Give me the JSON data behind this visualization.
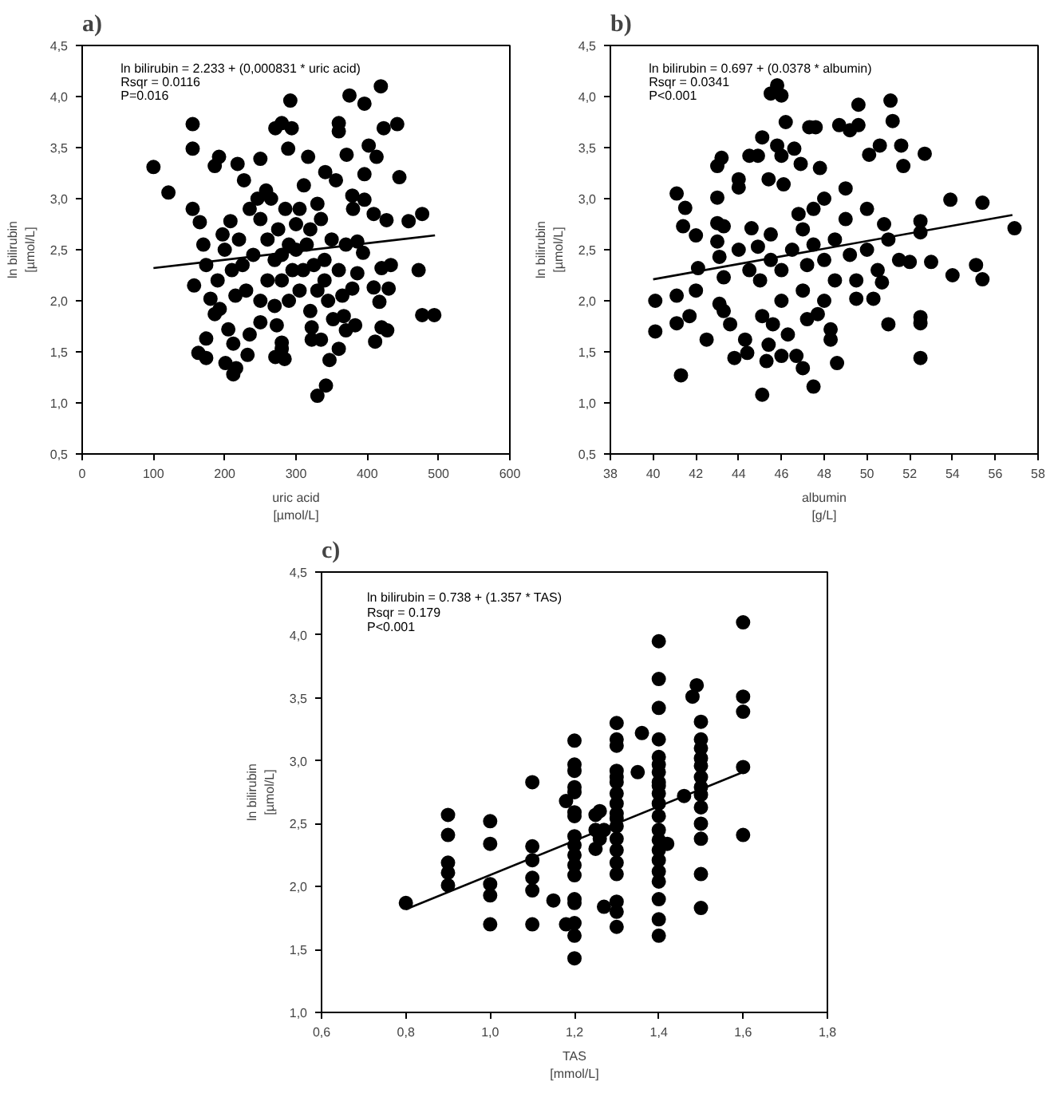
{
  "chart_data": [
    {
      "type": "scatter",
      "title": "a)",
      "xlabel": "uric acid\n[µmol/L]",
      "ylabel": "ln bilirubin\n[µmol/L]",
      "annotations": [
        "ln bilirubin = 2.233 + (0,000831 * uric acid)",
        "Rsqr = 0.0116",
        "P=0.016"
      ],
      "xlim": [
        0,
        600
      ],
      "xticks": [
        0,
        100,
        200,
        300,
        400,
        500,
        600
      ],
      "ylim": [
        0.5,
        4.5
      ],
      "yticks": [
        {
          "value": 0.5,
          "label": "0,5"
        },
        {
          "value": 1.0,
          "label": "1,0"
        },
        {
          "value": 1.5,
          "label": "1,5"
        },
        {
          "value": 2.0,
          "label": "2,0"
        },
        {
          "value": 2.5,
          "label": "2,5"
        },
        {
          "value": 3.0,
          "label": "3,0"
        },
        {
          "value": 3.5,
          "label": "3,5"
        },
        {
          "value": 4.0,
          "label": "4,0"
        },
        {
          "value": 4.5,
          "label": "4,5"
        }
      ],
      "series": [
        {
          "marker": "circle",
          "color": "#000000",
          "x": [
            100,
            121,
            155,
            155,
            155,
            157,
            165,
            163,
            174,
            174,
            201,
            212,
            216,
            212,
            232,
            192,
            186,
            218,
            227,
            250,
            271,
            280,
            294,
            292,
            289,
            317,
            360,
            360,
            375,
            396,
            419,
            423,
            442,
            402,
            413,
            445,
            396,
            396,
            409,
            427,
            458,
            477,
            472,
            477,
            494,
            433,
            420,
            409,
            417,
            430,
            420,
            428,
            411,
            383,
            370,
            367,
            360,
            347,
            342,
            330,
            335,
            322,
            322,
            352,
            280,
            280,
            271,
            284,
            273,
            235,
            250,
            205,
            186,
            193,
            180,
            174,
            170,
            197,
            208,
            246,
            258,
            311,
            341,
            371,
            356,
            379,
            386,
            394,
            386,
            379,
            250,
            260,
            270,
            280,
            290,
            300,
            310,
            320,
            330,
            340,
            350,
            260,
            275,
            285,
            295,
            305,
            315,
            325,
            335,
            345,
            240,
            230,
            220,
            210,
            200,
            190,
            360,
            370,
            380,
            300,
            290,
            280,
            270,
            320,
            250,
            235,
            225,
            215,
            365,
            340,
            305,
            265,
            330
          ],
          "values": [
            3.31,
            3.06,
            3.73,
            3.49,
            2.9,
            2.15,
            2.77,
            1.49,
            1.44,
            1.63,
            1.39,
            1.28,
            1.34,
            1.58,
            1.47,
            3.41,
            3.32,
            3.34,
            3.18,
            3.39,
            3.69,
            3.74,
            3.69,
            3.96,
            3.49,
            3.41,
            3.74,
            3.66,
            4.01,
            3.93,
            4.1,
            3.69,
            3.73,
            3.52,
            3.41,
            3.21,
            3.24,
            2.99,
            2.85,
            2.79,
            2.78,
            2.85,
            2.3,
            1.86,
            1.86,
            2.35,
            2.32,
            2.13,
            1.99,
            2.12,
            1.74,
            1.71,
            1.6,
            1.76,
            1.71,
            1.85,
            1.53,
            1.42,
            1.17,
            1.07,
            1.62,
            1.62,
            1.74,
            1.82,
            1.59,
            1.53,
            1.45,
            1.43,
            1.76,
            1.67,
            1.79,
            1.72,
            1.87,
            1.92,
            2.02,
            2.35,
            2.55,
            2.65,
            2.78,
            3.0,
            3.08,
            3.13,
            3.26,
            3.43,
            3.18,
            3.03,
            2.58,
            2.47,
            2.27,
            2.12,
            2.8,
            2.6,
            2.4,
            2.2,
            2.0,
            2.5,
            2.3,
            2.7,
            2.1,
            2.4,
            2.6,
            2.2,
            2.7,
            2.9,
            2.3,
            2.1,
            2.55,
            2.35,
            2.8,
            2.0,
            2.45,
            2.1,
            2.6,
            2.3,
            2.5,
            2.2,
            2.3,
            2.55,
            2.9,
            2.75,
            2.55,
            2.45,
            1.95,
            1.9,
            2.0,
            2.9,
            2.35,
            2.05,
            2.05,
            2.2,
            2.9,
            3.0,
            2.95
          ]
        },
        {
          "type": "line",
          "color": "#000000",
          "x": [
            100,
            495
          ],
          "values": [
            2.32,
            2.64
          ]
        }
      ]
    },
    {
      "type": "scatter",
      "title": "b)",
      "xlabel": "albumin\n[g/L]",
      "ylabel": "ln bilirubin\n[µmol/L]",
      "annotations": [
        "ln bilirubin = 0.697 + (0.0378 * albumin)",
        "Rsqr = 0.0341",
        "P<0.001"
      ],
      "xlim": [
        38,
        58
      ],
      "xticks": [
        38,
        40,
        42,
        44,
        46,
        48,
        50,
        52,
        54,
        56,
        58
      ],
      "ylim": [
        0.5,
        4.5
      ],
      "yticks": [
        {
          "value": 0.5,
          "label": "0,5"
        },
        {
          "value": 1.0,
          "label": "1,0"
        },
        {
          "value": 1.5,
          "label": "1,5"
        },
        {
          "value": 2.0,
          "label": "2,0"
        },
        {
          "value": 2.5,
          "label": "2,5"
        },
        {
          "value": 3.0,
          "label": "3,0"
        },
        {
          "value": 3.5,
          "label": "3,5"
        },
        {
          "value": 4.0,
          "label": "4,0"
        },
        {
          "value": 4.5,
          "label": "4,5"
        }
      ],
      "series": [
        {
          "marker": "circle",
          "color": "#000000",
          "x": [
            40.1,
            40.1,
            41.1,
            41.1,
            41.3,
            41.1,
            41.5,
            41.4,
            42.0,
            41.7,
            42.0,
            42.1,
            42.5,
            43.0,
            43.0,
            43.2,
            43.0,
            43.3,
            43.0,
            43.1,
            43.3,
            43.1,
            43.3,
            43.6,
            43.8,
            44.3,
            44.4,
            44.0,
            44.0,
            44.5,
            44.9,
            45.1,
            45.5,
            45.8,
            46.0,
            46.2,
            44.6,
            44.9,
            45.1,
            45.3,
            45.4,
            45.1,
            45.4,
            45.8,
            46.0,
            46.6,
            46.9,
            46.1,
            47.3,
            47.6,
            48.7,
            49.6,
            49.6,
            49.2,
            50.1,
            50.6,
            51.1,
            51.2,
            51.6,
            51.7,
            52.7,
            53.9,
            55.4,
            56.9,
            55.1,
            55.4,
            54.0,
            53.0,
            52.0,
            52.5,
            52.5,
            52.5,
            52.5,
            52.5,
            51.0,
            50.7,
            50.3,
            49.5,
            48.3,
            48.6,
            48.3,
            47.5,
            47.0,
            46.7,
            46.0,
            46.3,
            45.6,
            47.2,
            47.7,
            46,
            46.5,
            47,
            47.5,
            48,
            48.5,
            49,
            49.5,
            50,
            50.5,
            47,
            48,
            48,
            47.5,
            46.8,
            45.5,
            45,
            44.5,
            44,
            49,
            50,
            51,
            51.5,
            48.5,
            47.8,
            46,
            45.5,
            47.2,
            49.2,
            50.8
          ],
          "values": [
            2.0,
            1.7,
            2.05,
            1.78,
            1.27,
            3.05,
            2.91,
            2.73,
            2.1,
            1.85,
            2.64,
            2.32,
            1.62,
            3.01,
            3.32,
            3.4,
            2.76,
            2.73,
            2.58,
            2.43,
            2.23,
            1.97,
            1.9,
            1.77,
            1.44,
            1.62,
            1.49,
            3.11,
            3.19,
            3.42,
            3.42,
            3.6,
            4.03,
            4.11,
            4.01,
            3.75,
            2.71,
            2.53,
            1.08,
            1.41,
            1.57,
            1.85,
            3.19,
            3.52,
            3.42,
            3.49,
            3.34,
            3.14,
            3.7,
            3.7,
            3.72,
            3.92,
            3.72,
            3.67,
            3.43,
            3.52,
            3.96,
            3.76,
            3.52,
            3.32,
            3.44,
            2.99,
            2.96,
            2.71,
            2.35,
            2.21,
            2.25,
            2.38,
            2.38,
            2.78,
            2.67,
            1.84,
            1.78,
            1.44,
            1.77,
            2.18,
            2.02,
            2.02,
            1.62,
            1.39,
            1.72,
            1.16,
            1.34,
            1.46,
            1.46,
            1.67,
            1.77,
            1.82,
            1.87,
            2.3,
            2.5,
            2.7,
            2.9,
            2.4,
            2.6,
            2.8,
            2.2,
            2.5,
            2.3,
            2.1,
            3.0,
            2.0,
            2.55,
            2.85,
            2.4,
            2.2,
            2.3,
            2.5,
            3.1,
            2.9,
            2.6,
            2.4,
            2.2,
            3.3,
            2.0,
            2.65,
            2.35,
            2.45,
            2.75
          ]
        },
        {
          "type": "line",
          "color": "#000000",
          "x": [
            40,
            56.8
          ],
          "values": [
            2.21,
            2.84
          ]
        }
      ]
    },
    {
      "type": "scatter",
      "title": "c)",
      "xlabel": "TAS\n[mmol/L]",
      "ylabel": "ln bilirubin\n[µmol/L]",
      "annotations": [
        "ln bilirubin = 0.738 + (1.357 * TAS)",
        "Rsqr = 0.179",
        "P<0.001"
      ],
      "xlim": [
        0.6,
        1.8
      ],
      "xticks": [
        {
          "value": 0.6,
          "label": "0,6"
        },
        {
          "value": 0.8,
          "label": "0,8"
        },
        {
          "value": 1.0,
          "label": "1,0"
        },
        {
          "value": 1.2,
          "label": "1,2"
        },
        {
          "value": 1.4,
          "label": "1,4"
        },
        {
          "value": 1.6,
          "label": "1,6"
        },
        {
          "value": 1.8,
          "label": "1,8"
        }
      ],
      "ylim": [
        1.0,
        4.5
      ],
      "yticks": [
        {
          "value": 1.0,
          "label": "1,0"
        },
        {
          "value": 1.5,
          "label": "1,5"
        },
        {
          "value": 2.0,
          "label": "2,0"
        },
        {
          "value": 2.5,
          "label": "2,5"
        },
        {
          "value": 3.0,
          "label": "3,0"
        },
        {
          "value": 3.5,
          "label": "3,5"
        },
        {
          "value": 4.0,
          "label": "4,0"
        },
        {
          "value": 4.5,
          "label": "4,5"
        }
      ],
      "series": [
        {
          "marker": "circle",
          "color": "#000000",
          "x": [
            0.8,
            0.9,
            0.9,
            0.9,
            0.9,
            0.9,
            1.0,
            1.0,
            1.0,
            1.0,
            1.0,
            1.1,
            1.1,
            1.1,
            1.1,
            1.1,
            1.1,
            1.15,
            1.18,
            1.18,
            1.2,
            1.2,
            1.2,
            1.2,
            1.2,
            1.2,
            1.2,
            1.2,
            1.2,
            1.2,
            1.2,
            1.2,
            1.2,
            1.2,
            1.2,
            1.2,
            1.2,
            1.25,
            1.25,
            1.25,
            1.26,
            1.26,
            1.27,
            1.27,
            1.3,
            1.3,
            1.3,
            1.3,
            1.3,
            1.3,
            1.3,
            1.3,
            1.3,
            1.3,
            1.3,
            1.3,
            1.3,
            1.3,
            1.3,
            1.3,
            1.3,
            1.3,
            1.35,
            1.36,
            1.4,
            1.4,
            1.4,
            1.4,
            1.4,
            1.4,
            1.4,
            1.4,
            1.4,
            1.4,
            1.4,
            1.4,
            1.4,
            1.4,
            1.4,
            1.4,
            1.4,
            1.4,
            1.4,
            1.4,
            1.4,
            1.42,
            1.46,
            1.48,
            1.49,
            1.5,
            1.5,
            1.5,
            1.5,
            1.5,
            1.5,
            1.5,
            1.5,
            1.5,
            1.5,
            1.5,
            1.5,
            1.5,
            1.6,
            1.6,
            1.6,
            1.6,
            1.6
          ],
          "values": [
            1.87,
            2.57,
            2.41,
            2.19,
            2.11,
            2.01,
            2.52,
            2.34,
            2.02,
            1.93,
            1.7,
            2.83,
            2.32,
            2.21,
            2.07,
            1.97,
            1.7,
            1.89,
            2.68,
            1.7,
            3.16,
            2.97,
            2.92,
            2.79,
            2.75,
            2.59,
            2.56,
            2.4,
            2.33,
            2.25,
            2.17,
            2.09,
            1.9,
            1.87,
            1.71,
            1.61,
            1.43,
            2.45,
            2.3,
            2.57,
            2.6,
            2.38,
            1.84,
            2.45,
            3.3,
            3.17,
            3.12,
            2.92,
            2.83,
            2.74,
            2.66,
            2.58,
            2.48,
            2.38,
            2.29,
            2.19,
            2.1,
            1.88,
            1.8,
            1.68,
            2.87,
            2.54,
            2.91,
            3.22,
            3.95,
            3.65,
            3.42,
            3.17,
            3.03,
            2.91,
            2.83,
            2.74,
            2.66,
            2.56,
            2.45,
            2.37,
            2.29,
            2.21,
            2.12,
            2.04,
            1.9,
            1.74,
            1.61,
            2.97,
            2.8,
            2.34,
            2.72,
            3.51,
            3.6,
            3.31,
            3.17,
            3.1,
            3.02,
            2.96,
            2.87,
            2.79,
            2.73,
            2.63,
            2.5,
            2.38,
            2.1,
            1.83,
            4.1,
            3.51,
            3.39,
            2.95,
            2.41
          ]
        },
        {
          "type": "line",
          "color": "#000000",
          "x": [
            0.8,
            1.6
          ],
          "values": [
            1.82,
            2.91
          ]
        }
      ]
    }
  ]
}
